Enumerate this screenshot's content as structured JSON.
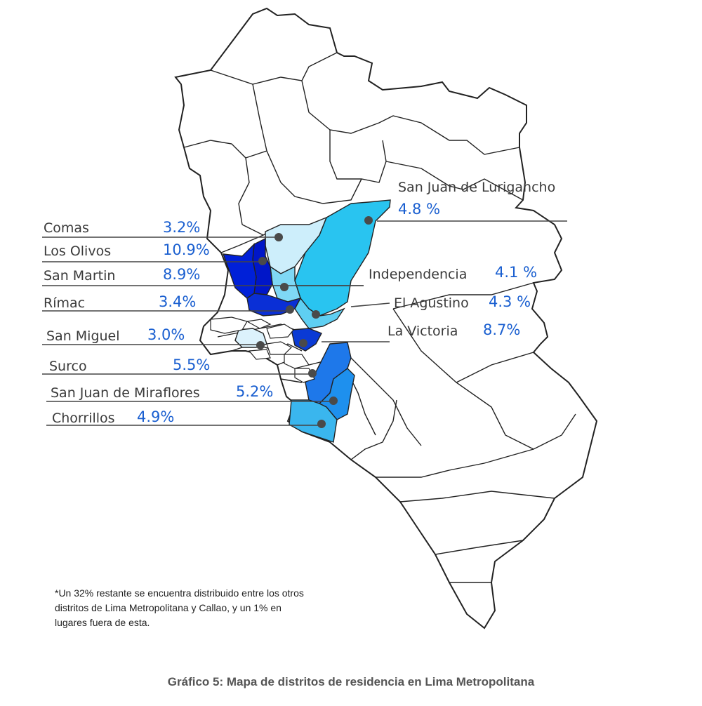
{
  "colors": {
    "percent_text": "#1a5fd0",
    "leader_line": "#444444",
    "marker": "#4a4a4a",
    "outline": "#222222"
  },
  "districts": [
    {
      "name": "San Juan de Lurigancho",
      "percent": "4.8 %",
      "share": 4.8,
      "fill": "#29c4f0"
    },
    {
      "name": "Comas",
      "percent": "3.2%",
      "share": 3.2,
      "fill": "#cdeefb"
    },
    {
      "name": "Los Olivos",
      "percent": "10.9%",
      "share": 10.9,
      "fill": "#0016c8"
    },
    {
      "name": "San Martin",
      "percent": "8.9%",
      "share": 8.9,
      "fill": "#0020d8"
    },
    {
      "name": "Independencia",
      "percent": "4.1 %",
      "share": 4.1,
      "fill": "#7fd8f5"
    },
    {
      "name": "Rímac",
      "percent": "3.4%",
      "share": 3.4,
      "fill": "#0a2fd6"
    },
    {
      "name": "El Agustino",
      "percent": "4.3 %",
      "share": 4.3,
      "fill": "#5fcff2"
    },
    {
      "name": "La Victoria",
      "percent": "8.7%",
      "share": 8.7,
      "fill": "#0a3ad4"
    },
    {
      "name": "San Miguel",
      "percent": "3.0%",
      "share": 3.0,
      "fill": "#dcf2fc"
    },
    {
      "name": "Surco",
      "percent": "5.5%",
      "share": 5.5,
      "fill": "#1e78ea"
    },
    {
      "name": "San Juan de Miraflores",
      "percent": "5.2%",
      "share": 5.2,
      "fill": "#1e90ee"
    },
    {
      "name": "Chorrillos",
      "percent": "4.9%",
      "share": 4.9,
      "fill": "#3ab6ee"
    }
  ],
  "footnote": {
    "line1": "*Un 32% restante se encuentra distribuido entre los otros",
    "line2": "distritos de Lima Metropolitana y Callao, y un 1% en",
    "line3": "lugares fuera de esta."
  },
  "caption": "Gráfico 5: Mapa de distritos de residencia en Lima Metropolitana"
}
